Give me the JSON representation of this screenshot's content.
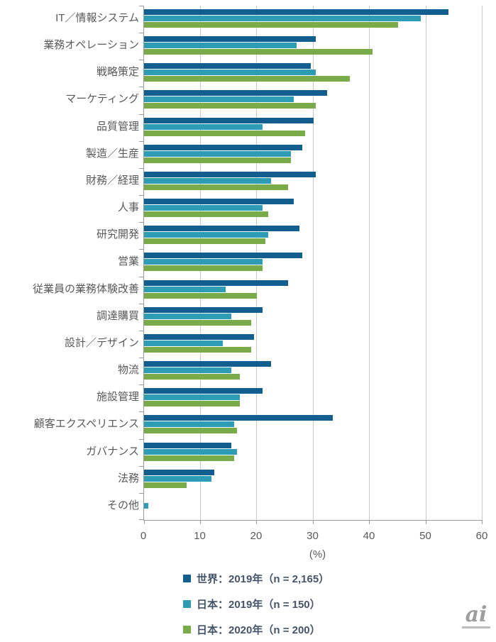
{
  "chart_data": {
    "type": "bar",
    "orientation": "horizontal",
    "title": "",
    "xlabel": "(%)",
    "ylabel": "",
    "xlim": [
      0,
      60
    ],
    "x_ticks": [
      0,
      10,
      20,
      30,
      40,
      50,
      60
    ],
    "grid": "vertical",
    "legend_position": "bottom",
    "categories": [
      "IT／情報システム",
      "業務オペレーション",
      "戦略策定",
      "マーケティング",
      "品質管理",
      "製造／生産",
      "財務／経理",
      "人事",
      "研究開発",
      "営業",
      "従業員の業務体験改善",
      "調達購買",
      "設計／デザイン",
      "物流",
      "施設管理",
      "顧客エクスペリエンス",
      "ガバナンス",
      "法務",
      "その他"
    ],
    "series": [
      {
        "name": "世界：2019年（n = 2,165）",
        "color": "#125e8e",
        "values": [
          54,
          30.5,
          29.5,
          32.5,
          30,
          28,
          30.5,
          26.5,
          27.5,
          28,
          25.5,
          21,
          19.5,
          22.5,
          21,
          33.5,
          15.5,
          12.5,
          0
        ]
      },
      {
        "name": "日本：2019年（n = 150）",
        "color": "#2d9cb4",
        "values": [
          49,
          27,
          30.5,
          26.5,
          21,
          26,
          22.5,
          21,
          22,
          21,
          14.5,
          15.5,
          14,
          15.5,
          17,
          16,
          16.5,
          12,
          0.7
        ]
      },
      {
        "name": "日本：2020年（n = 200）",
        "color": "#79ab4b",
        "values": [
          45,
          40.5,
          36.5,
          30.5,
          28.5,
          26,
          25.5,
          22,
          21.5,
          21,
          20,
          19,
          19,
          17,
          17,
          16.5,
          16,
          7.5,
          0
        ]
      }
    ]
  },
  "watermark": {
    "text": "ai"
  },
  "colors": {
    "axis": "#9b9b9b",
    "gridline": "#c8c8c8",
    "category_text": "#595959",
    "tick_text": "#595959",
    "legend_text": "#44546a"
  }
}
